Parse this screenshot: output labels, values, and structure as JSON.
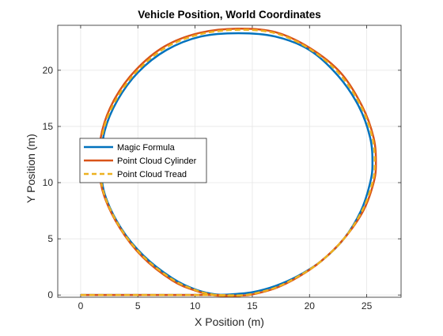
{
  "chart_data": {
    "type": "line",
    "title": "Vehicle Position, World Coordinates",
    "xlabel": "X Position (m)",
    "ylabel": "Y Position (m)",
    "xlim": [
      -2,
      28
    ],
    "ylim": [
      -0.2,
      24
    ],
    "xticks": [
      0,
      5,
      10,
      15,
      20,
      25
    ],
    "yticks": [
      0,
      5,
      10,
      15,
      20
    ],
    "grid": true,
    "legend_position": "middle-left",
    "series": [
      {
        "name": "Magic Formula",
        "color": "#0072BD",
        "line_style": "solid",
        "points": [
          [
            0,
            0
          ],
          [
            5,
            0
          ],
          [
            10,
            0
          ],
          [
            11,
            0
          ],
          [
            12,
            0.02
          ],
          [
            13,
            0.05
          ],
          [
            15,
            0.25
          ],
          [
            17,
            0.8
          ],
          [
            19,
            1.7
          ],
          [
            21,
            3.0
          ],
          [
            23,
            5.0
          ],
          [
            24.5,
            7.5
          ],
          [
            25.3,
            10.0
          ],
          [
            25.5,
            11.7
          ],
          [
            25.3,
            14.0
          ],
          [
            24.3,
            16.8
          ],
          [
            22.5,
            19.5
          ],
          [
            20,
            21.8
          ],
          [
            17,
            23.0
          ],
          [
            13.8,
            23.3
          ],
          [
            10.5,
            23.0
          ],
          [
            7.5,
            21.8
          ],
          [
            5,
            19.8
          ],
          [
            3.2,
            17.3
          ],
          [
            2.1,
            14.6
          ],
          [
            1.8,
            11.7
          ],
          [
            2.1,
            9.0
          ],
          [
            3.5,
            6.0
          ],
          [
            5.5,
            3.5
          ],
          [
            8,
            1.5
          ],
          [
            10,
            0.5
          ],
          [
            11.5,
            0.1
          ],
          [
            12.5,
            0
          ]
        ]
      },
      {
        "name": "Point Cloud Cylinder",
        "color": "#D95319",
        "line_style": "solid",
        "points": [
          [
            0,
            0
          ],
          [
            5,
            0
          ],
          [
            10,
            0
          ],
          [
            11,
            0
          ],
          [
            12,
            0
          ],
          [
            13,
            -0.05
          ],
          [
            14,
            -0.05
          ],
          [
            15,
            0.05
          ],
          [
            17,
            0.6
          ],
          [
            19,
            1.6
          ],
          [
            21,
            3.0
          ],
          [
            23,
            5.0
          ],
          [
            24.7,
            7.5
          ],
          [
            25.6,
            10.0
          ],
          [
            25.8,
            11.7
          ],
          [
            25.6,
            14.0
          ],
          [
            24.6,
            16.8
          ],
          [
            22.7,
            19.8
          ],
          [
            20,
            22.0
          ],
          [
            17,
            23.4
          ],
          [
            13.7,
            23.7
          ],
          [
            10.3,
            23.3
          ],
          [
            7.3,
            22.1
          ],
          [
            4.8,
            20.0
          ],
          [
            3,
            17.5
          ],
          [
            1.9,
            14.7
          ],
          [
            1.6,
            11.7
          ],
          [
            2,
            9.0
          ],
          [
            3.4,
            6.0
          ],
          [
            5.4,
            3.4
          ],
          [
            8,
            1.3
          ],
          [
            10,
            0.4
          ],
          [
            11.5,
            0
          ],
          [
            12.8,
            -0.1
          ],
          [
            14,
            -0.1
          ]
        ]
      },
      {
        "name": "Point Cloud Tread",
        "color": "#EDB120",
        "line_style": "dashed",
        "points": [
          [
            0,
            0
          ],
          [
            5,
            0
          ],
          [
            10,
            0
          ],
          [
            11,
            0
          ],
          [
            12,
            0
          ],
          [
            13,
            -0.02
          ],
          [
            14,
            -0.02
          ],
          [
            15,
            0.1
          ],
          [
            17,
            0.65
          ],
          [
            19,
            1.65
          ],
          [
            21,
            3.0
          ],
          [
            23,
            5.0
          ],
          [
            24.6,
            7.5
          ],
          [
            25.5,
            10.0
          ],
          [
            25.7,
            11.7
          ],
          [
            25.5,
            14.0
          ],
          [
            24.5,
            16.8
          ],
          [
            22.6,
            19.7
          ],
          [
            20,
            21.9
          ],
          [
            17,
            23.3
          ],
          [
            13.7,
            23.6
          ],
          [
            10.4,
            23.2
          ],
          [
            7.4,
            22.0
          ],
          [
            4.9,
            19.9
          ],
          [
            3.1,
            17.4
          ],
          [
            2,
            14.7
          ],
          [
            1.7,
            11.7
          ],
          [
            2.05,
            9.0
          ],
          [
            3.45,
            6.0
          ],
          [
            5.45,
            3.45
          ],
          [
            8,
            1.4
          ],
          [
            10,
            0.45
          ],
          [
            11.5,
            0.05
          ],
          [
            12.7,
            -0.05
          ],
          [
            14,
            -0.05
          ]
        ]
      }
    ]
  }
}
